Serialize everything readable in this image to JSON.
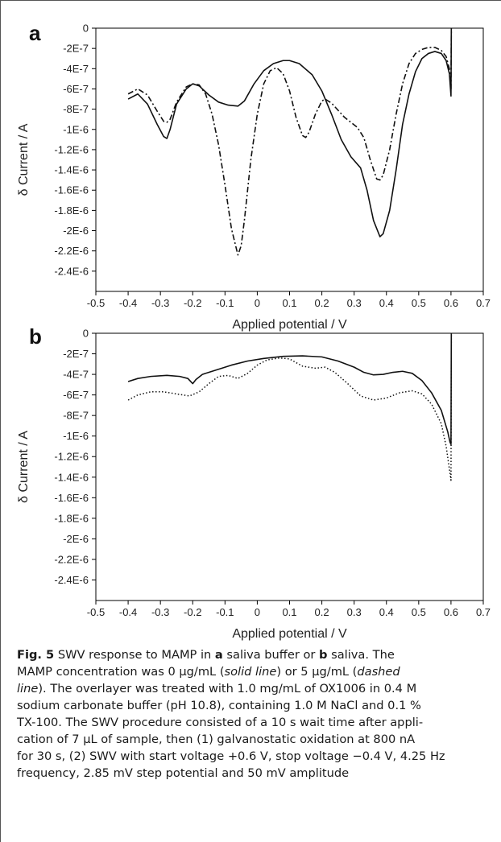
{
  "chart_data": [
    {
      "type": "line",
      "panel": "a",
      "xlabel": "Applied potential / V",
      "ylabel": "δ Current / A",
      "xlim": [
        -0.5,
        0.7
      ],
      "ylim": [
        -2.6e-06,
        0
      ],
      "xticks": [
        "-0.5",
        "-0.4",
        "-0.3",
        "-0.2",
        "-0.1",
        "0",
        "0.1",
        "0.2",
        "0.3",
        "0.4",
        "0.5",
        "0.6",
        "0.7"
      ],
      "yticks": [
        "0",
        "-2E-7",
        "-4E-7",
        "-6E-7",
        "-8E-7",
        "-1E-6",
        "-1.2E-6",
        "-1.4E-6",
        "-1.6E-6",
        "-1.8E-6",
        "-2E-6",
        "-2.2E-6",
        "-2.4E-6"
      ],
      "grid": false,
      "series": [
        {
          "style": "solid",
          "points": [
            [
              -0.4,
              -7e-07
            ],
            [
              -0.37,
              -6.5e-07
            ],
            [
              -0.34,
              -7.5e-07
            ],
            [
              -0.31,
              -9.5e-07
            ],
            [
              -0.29,
              -1.07e-06
            ],
            [
              -0.28,
              -1.09e-06
            ],
            [
              -0.27,
              -1e-06
            ],
            [
              -0.25,
              -7.5e-07
            ],
            [
              -0.22,
              -6e-07
            ],
            [
              -0.2,
              -5.5e-07
            ],
            [
              -0.18,
              -5.7e-07
            ],
            [
              -0.15,
              -6.6e-07
            ],
            [
              -0.12,
              -7.3e-07
            ],
            [
              -0.09,
              -7.6e-07
            ],
            [
              -0.06,
              -7.7e-07
            ],
            [
              -0.04,
              -7.2e-07
            ],
            [
              -0.01,
              -5.5e-07
            ],
            [
              0.02,
              -4.2e-07
            ],
            [
              0.05,
              -3.5e-07
            ],
            [
              0.08,
              -3.2e-07
            ],
            [
              0.1,
              -3.2e-07
            ],
            [
              0.13,
              -3.5e-07
            ],
            [
              0.17,
              -4.6e-07
            ],
            [
              0.2,
              -6.2e-07
            ],
            [
              0.23,
              -8.5e-07
            ],
            [
              0.26,
              -1.1e-06
            ],
            [
              0.29,
              -1.27e-06
            ],
            [
              0.32,
              -1.38e-06
            ],
            [
              0.34,
              -1.6e-06
            ],
            [
              0.36,
              -1.9e-06
            ],
            [
              0.38,
              -2.06e-06
            ],
            [
              0.39,
              -2.03e-06
            ],
            [
              0.41,
              -1.8e-06
            ],
            [
              0.43,
              -1.4e-06
            ],
            [
              0.45,
              -9.5e-07
            ],
            [
              0.47,
              -6.5e-07
            ],
            [
              0.49,
              -4.3e-07
            ],
            [
              0.51,
              -3e-07
            ],
            [
              0.53,
              -2.5e-07
            ],
            [
              0.55,
              -2.3e-07
            ],
            [
              0.57,
              -2.5e-07
            ],
            [
              0.585,
              -3.2e-07
            ],
            [
              0.595,
              -4.5e-07
            ],
            [
              0.6,
              -6.7e-07
            ],
            [
              0.601,
              0
            ]
          ]
        },
        {
          "style": "dash-dot",
          "points": [
            [
              -0.4,
              -6.5e-07
            ],
            [
              -0.37,
              -6e-07
            ],
            [
              -0.34,
              -6.6e-07
            ],
            [
              -0.31,
              -8.2e-07
            ],
            [
              -0.29,
              -9.2e-07
            ],
            [
              -0.28,
              -9.3e-07
            ],
            [
              -0.27,
              -9e-07
            ],
            [
              -0.25,
              -7.3e-07
            ],
            [
              -0.22,
              -5.8e-07
            ],
            [
              -0.2,
              -5.5e-07
            ],
            [
              -0.18,
              -5.6e-07
            ],
            [
              -0.16,
              -6.5e-07
            ],
            [
              -0.14,
              -8.5e-07
            ],
            [
              -0.12,
              -1.15e-06
            ],
            [
              -0.1,
              -1.55e-06
            ],
            [
              -0.08,
              -1.98e-06
            ],
            [
              -0.06,
              -2.24e-06
            ],
            [
              -0.05,
              -2.15e-06
            ],
            [
              -0.04,
              -1.9e-06
            ],
            [
              -0.02,
              -1.3e-06
            ],
            [
              0.0,
              -8.5e-07
            ],
            [
              0.02,
              -5.5e-07
            ],
            [
              0.04,
              -4.2e-07
            ],
            [
              0.06,
              -3.9e-07
            ],
            [
              0.08,
              -4.5e-07
            ],
            [
              0.1,
              -6.2e-07
            ],
            [
              0.12,
              -8.8e-07
            ],
            [
              0.14,
              -1.06e-06
            ],
            [
              0.15,
              -1.08e-06
            ],
            [
              0.16,
              -1.03e-06
            ],
            [
              0.18,
              -8.5e-07
            ],
            [
              0.2,
              -7.2e-07
            ],
            [
              0.21,
              -7e-07
            ],
            [
              0.23,
              -7.4e-07
            ],
            [
              0.25,
              -8.1e-07
            ],
            [
              0.27,
              -8.8e-07
            ],
            [
              0.29,
              -9.3e-07
            ],
            [
              0.31,
              -9.8e-07
            ],
            [
              0.33,
              -1.08e-06
            ],
            [
              0.35,
              -1.3e-06
            ],
            [
              0.37,
              -1.49e-06
            ],
            [
              0.38,
              -1.5e-06
            ],
            [
              0.39,
              -1.45e-06
            ],
            [
              0.41,
              -1.2e-06
            ],
            [
              0.43,
              -8.5e-07
            ],
            [
              0.45,
              -5.5e-07
            ],
            [
              0.47,
              -3.5e-07
            ],
            [
              0.49,
              -2.5e-07
            ],
            [
              0.51,
              -2.1e-07
            ],
            [
              0.53,
              -1.9e-07
            ],
            [
              0.55,
              -1.9e-07
            ],
            [
              0.57,
              -2.2e-07
            ],
            [
              0.585,
              -2.8e-07
            ],
            [
              0.595,
              -4e-07
            ],
            [
              0.6,
              -6e-07
            ],
            [
              0.601,
              0
            ]
          ]
        }
      ]
    },
    {
      "type": "line",
      "panel": "b",
      "xlabel": "Applied potential / V",
      "ylabel": "δ Current / A",
      "xlim": [
        -0.5,
        0.7
      ],
      "ylim": [
        -2.6e-06,
        0
      ],
      "xticks": [
        "-0.5",
        "-0.4",
        "-0.3",
        "-0.2",
        "-0.1",
        "0",
        "0.1",
        "0.2",
        "0.3",
        "0.4",
        "0.5",
        "0.6",
        "0.7"
      ],
      "yticks": [
        "0",
        "-2E-7",
        "-4E-7",
        "-6E-7",
        "-8E-7",
        "-1E-6",
        "-1.2E-6",
        "-1.4E-6",
        "-1.6E-6",
        "-1.8E-6",
        "-2E-6",
        "-2.2E-6",
        "-2.4E-6"
      ],
      "grid": false,
      "series": [
        {
          "style": "solid",
          "points": [
            [
              -0.4,
              -4.7e-07
            ],
            [
              -0.37,
              -4.4e-07
            ],
            [
              -0.33,
              -4.2e-07
            ],
            [
              -0.28,
              -4.1e-07
            ],
            [
              -0.24,
              -4.2e-07
            ],
            [
              -0.215,
              -4.4e-07
            ],
            [
              -0.2,
              -4.9e-07
            ],
            [
              -0.19,
              -4.5e-07
            ],
            [
              -0.17,
              -4e-07
            ],
            [
              -0.13,
              -3.6e-07
            ],
            [
              -0.08,
              -3.1e-07
            ],
            [
              -0.03,
              -2.7e-07
            ],
            [
              0.02,
              -2.45e-07
            ],
            [
              0.08,
              -2.25e-07
            ],
            [
              0.14,
              -2.2e-07
            ],
            [
              0.2,
              -2.3e-07
            ],
            [
              0.25,
              -2.7e-07
            ],
            [
              0.3,
              -3.3e-07
            ],
            [
              0.33,
              -3.8e-07
            ],
            [
              0.36,
              -4.05e-07
            ],
            [
              0.39,
              -4e-07
            ],
            [
              0.42,
              -3.8e-07
            ],
            [
              0.45,
              -3.7e-07
            ],
            [
              0.48,
              -3.9e-07
            ],
            [
              0.51,
              -4.6e-07
            ],
            [
              0.54,
              -5.8e-07
            ],
            [
              0.57,
              -7.5e-07
            ],
            [
              0.59,
              -9.6e-07
            ],
            [
              0.597,
              -1.06e-06
            ],
            [
              0.6,
              -1.08e-06
            ],
            [
              0.601,
              0
            ]
          ]
        },
        {
          "style": "dotted",
          "points": [
            [
              -0.4,
              -6.5e-07
            ],
            [
              -0.37,
              -6e-07
            ],
            [
              -0.33,
              -5.7e-07
            ],
            [
              -0.29,
              -5.7e-07
            ],
            [
              -0.25,
              -5.9e-07
            ],
            [
              -0.21,
              -6.1e-07
            ],
            [
              -0.18,
              -5.7e-07
            ],
            [
              -0.15,
              -4.9e-07
            ],
            [
              -0.12,
              -4.2e-07
            ],
            [
              -0.09,
              -4.1e-07
            ],
            [
              -0.06,
              -4.4e-07
            ],
            [
              -0.03,
              -3.9e-07
            ],
            [
              0.0,
              -3.1e-07
            ],
            [
              0.03,
              -2.6e-07
            ],
            [
              0.07,
              -2.4e-07
            ],
            [
              0.1,
              -2.5e-07
            ],
            [
              0.14,
              -3.2e-07
            ],
            [
              0.18,
              -3.4e-07
            ],
            [
              0.21,
              -3.3e-07
            ],
            [
              0.24,
              -3.8e-07
            ],
            [
              0.28,
              -4.9e-07
            ],
            [
              0.32,
              -6.1e-07
            ],
            [
              0.36,
              -6.5e-07
            ],
            [
              0.4,
              -6.3e-07
            ],
            [
              0.44,
              -5.8e-07
            ],
            [
              0.48,
              -5.6e-07
            ],
            [
              0.51,
              -5.9e-07
            ],
            [
              0.54,
              -6.9e-07
            ],
            [
              0.57,
              -8.8e-07
            ],
            [
              0.585,
              -1.1e-06
            ],
            [
              0.595,
              -1.32e-06
            ],
            [
              0.6,
              -1.43e-06
            ],
            [
              0.601,
              0
            ]
          ]
        }
      ]
    }
  ],
  "caption": {
    "fig_label": "Fig. 5",
    "line1_a": "  SWV response to MAMP in ",
    "line1_b": "a",
    "line1_c": " saliva buffer or ",
    "line1_d": "b",
    "line1_e": " saliva. The",
    "line2_a": "MAMP concentration was 0 µg/mL (",
    "line2_b": "solid line",
    "line2_c": ") or 5 µg/mL (",
    "line2_d": "dashed",
    "line3_a": "line",
    "line3_b": "). The overlayer was treated with 1.0 mg/mL of OX1006 in 0.4 M",
    "line4": "sodium carbonate buffer (pH 10.8), containing 1.0 M NaCl and 0.1 %",
    "line5": "TX-100. The SWV procedure consisted of a 10 s wait time after appli-",
    "line6": "cation of 7 µL of sample, then (1) galvanostatic oxidation at 800 nA",
    "line7": "for 30 s, (2) SWV with start voltage +0.6 V, stop voltage −0.4 V, 4.25 Hz",
    "line8": "frequency, 2.85 mV step potential and 50 mV amplitude"
  }
}
